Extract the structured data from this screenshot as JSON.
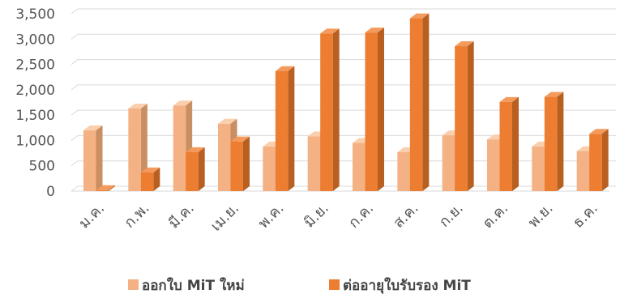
{
  "chart_data": {
    "type": "bar",
    "categories": [
      "ม.ค.",
      "ก.พ.",
      "มี.ค.",
      "เม.ย.",
      "พ.ค.",
      "มิ.ย.",
      "ก.ค.",
      "ส.ค.",
      "ก.ย.",
      "ต.ค.",
      "พ.ย.",
      "ธ.ค."
    ],
    "series": [
      {
        "name": "ออกใบ MiT ใหม่",
        "values": [
          1200,
          1630,
          1690,
          1330,
          880,
          1080,
          950,
          770,
          1100,
          1020,
          880,
          790
        ],
        "color": "#F4B183",
        "side_color": "#C98F63",
        "top_color": "#F9CFAE"
      },
      {
        "name": "ต่ออายุใบรับรอง MiT",
        "values": [
          20,
          370,
          770,
          980,
          2370,
          3110,
          3130,
          3410,
          2860,
          1760,
          1860,
          1130
        ],
        "color": "#ED7D31",
        "side_color": "#B85F22",
        "top_color": "#F39A5C"
      }
    ],
    "yticks": [
      0,
      500,
      1000,
      1500,
      2000,
      2500,
      3000,
      3500
    ],
    "ytick_labels": [
      "0",
      "500",
      "1,000",
      "1,500",
      "2,000",
      "2,500",
      "3,000",
      "3,500"
    ],
    "ylim": [
      0,
      3500
    ],
    "grid": true,
    "legend_position": "bottom",
    "title": "",
    "xlabel": "",
    "ylabel": ""
  }
}
